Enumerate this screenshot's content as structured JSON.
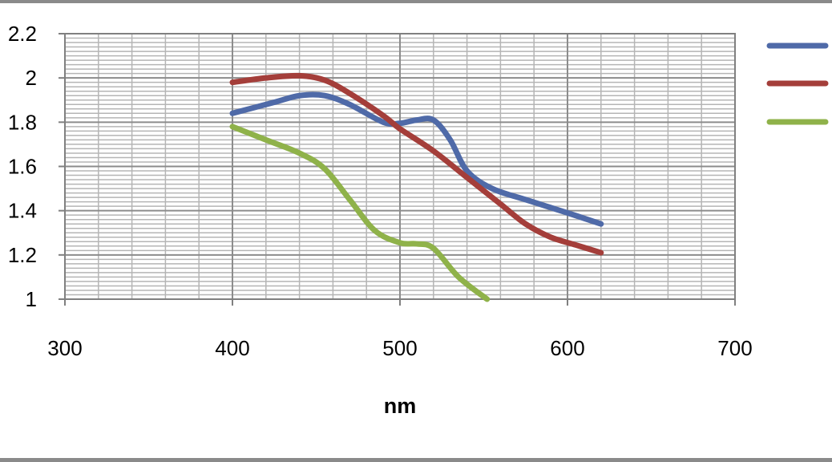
{
  "chart_data": {
    "type": "line",
    "title": "",
    "xlabel": "nm",
    "ylabel": "",
    "xlim": [
      300,
      700
    ],
    "ylim": [
      1,
      2.2
    ],
    "x_ticks": [
      300,
      400,
      500,
      600,
      700
    ],
    "y_ticks": [
      1,
      1.2,
      1.4,
      1.6,
      1.8,
      2,
      2.2
    ],
    "x_tick_labels": [
      "300",
      "400",
      "500",
      "600",
      "700"
    ],
    "y_tick_labels": [
      "1",
      "1.2",
      "1.4",
      "1.6",
      "1.8",
      "2",
      "2.2"
    ],
    "grid": true,
    "legend_position": "right",
    "colors": {
      "grid_major": "#8c8c8c",
      "grid_minor": "#b5b5b5",
      "frame": "#808080",
      "border": "#8a8a8a"
    },
    "series": [
      {
        "color": "#4f6aa8",
        "points": [
          [
            400,
            1.84
          ],
          [
            425,
            1.89
          ],
          [
            440,
            1.92
          ],
          [
            455,
            1.92
          ],
          [
            470,
            1.88
          ],
          [
            490,
            1.8
          ],
          [
            500,
            1.795
          ],
          [
            510,
            1.81
          ],
          [
            520,
            1.81
          ],
          [
            530,
            1.72
          ],
          [
            540,
            1.58
          ],
          [
            555,
            1.5
          ],
          [
            575,
            1.45
          ],
          [
            600,
            1.39
          ],
          [
            620,
            1.34
          ]
        ]
      },
      {
        "color": "#a43e3a",
        "points": [
          [
            400,
            1.98
          ],
          [
            420,
            2.0
          ],
          [
            440,
            2.01
          ],
          [
            455,
            1.99
          ],
          [
            470,
            1.93
          ],
          [
            490,
            1.83
          ],
          [
            500,
            1.77
          ],
          [
            520,
            1.67
          ],
          [
            540,
            1.55
          ],
          [
            560,
            1.43
          ],
          [
            575,
            1.34
          ],
          [
            590,
            1.28
          ],
          [
            605,
            1.245
          ],
          [
            620,
            1.21
          ]
        ]
      },
      {
        "color": "#8fb24a",
        "points": [
          [
            400,
            1.78
          ],
          [
            420,
            1.72
          ],
          [
            440,
            1.66
          ],
          [
            455,
            1.59
          ],
          [
            470,
            1.45
          ],
          [
            485,
            1.31
          ],
          [
            500,
            1.255
          ],
          [
            510,
            1.25
          ],
          [
            520,
            1.23
          ],
          [
            535,
            1.1
          ],
          [
            552,
            1.0
          ]
        ]
      }
    ]
  }
}
